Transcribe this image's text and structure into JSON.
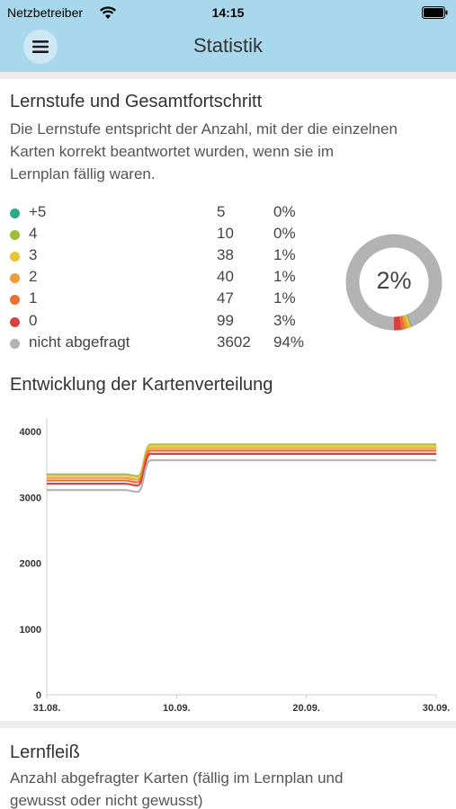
{
  "status_bar": {
    "carrier": "Netzbetreiber",
    "time": "14:15"
  },
  "nav": {
    "title": "Statistik",
    "menu_icon": "hamburger-icon"
  },
  "level_section": {
    "title": "Lernstufe und Gesamtfortschritt",
    "description_lines": [
      "Die Lernstufe entspricht der Anzahl, mit der die einzelnen",
      "Karten korrekt beantwortet wurden, wenn sie im",
      "Lernplan fällig waren."
    ],
    "levels": [
      {
        "label": "+5",
        "count": "5",
        "percent": "0%",
        "color": "#2bab8e"
      },
      {
        "label": "4",
        "count": "10",
        "percent": "0%",
        "color": "#9bbd3a"
      },
      {
        "label": "3",
        "count": "38",
        "percent": "1%",
        "color": "#e8c536"
      },
      {
        "label": "2",
        "count": "40",
        "percent": "1%",
        "color": "#ee9c3c"
      },
      {
        "label": "1",
        "count": "47",
        "percent": "1%",
        "color": "#e96f33"
      },
      {
        "label": "0",
        "count": "99",
        "percent": "3%",
        "color": "#d94141"
      },
      {
        "label": "nicht abgefragt",
        "count": "3602",
        "percent": "94%",
        "color": "#b3b3b3"
      }
    ],
    "total_progress_label": "2%"
  },
  "distribution_section": {
    "title": "Entwicklung der Kartenverteilung"
  },
  "chart_data": {
    "type": "area",
    "title": "Entwicklung der Kartenverteilung",
    "xlabel": "",
    "ylabel": "",
    "x_ticks": [
      "31.08.",
      "10.09.",
      "20.09.",
      "30.09."
    ],
    "y_ticks": [
      0,
      1000,
      2000,
      3000,
      4000
    ],
    "ylim": [
      0,
      4000
    ],
    "x_range": [
      "31.08.",
      "30.09."
    ],
    "grid": false,
    "legend": "none",
    "x_dates": [
      "31.08.",
      "06.09.",
      "07.09.",
      "08.09.",
      "10.09.",
      "30.09."
    ],
    "series": [
      {
        "level": "+5",
        "color": "#2bab8e",
        "values": [
          3347,
          3347,
          3320,
          3800,
          3800,
          3800
        ]
      },
      {
        "level": "4",
        "color": "#9bbd3a",
        "values": [
          3342,
          3342,
          3315,
          3795,
          3795,
          3795
        ]
      },
      {
        "level": "3",
        "color": "#e8c536",
        "values": [
          3332,
          3332,
          3305,
          3785,
          3785,
          3785
        ]
      },
      {
        "level": "2",
        "color": "#ee9c3c",
        "values": [
          3295,
          3295,
          3268,
          3748,
          3748,
          3748
        ]
      },
      {
        "level": "1",
        "color": "#e96f33",
        "values": [
          3255,
          3255,
          3228,
          3708,
          3708,
          3708
        ]
      },
      {
        "level": "0",
        "color": "#d94141",
        "values": [
          3207,
          3207,
          3180,
          3660,
          3660,
          3660
        ]
      },
      {
        "level": "nicht abgefragt",
        "color": "#b3b3b3",
        "values": [
          3110,
          3110,
          3083,
          3563,
          3563,
          3563
        ]
      }
    ]
  },
  "diligence_section": {
    "title": "Lernfleiß",
    "description_lines": [
      "Anzahl abgefragter Karten (fällig im Lernplan und",
      "gewusst oder nicht gewusst)"
    ]
  }
}
